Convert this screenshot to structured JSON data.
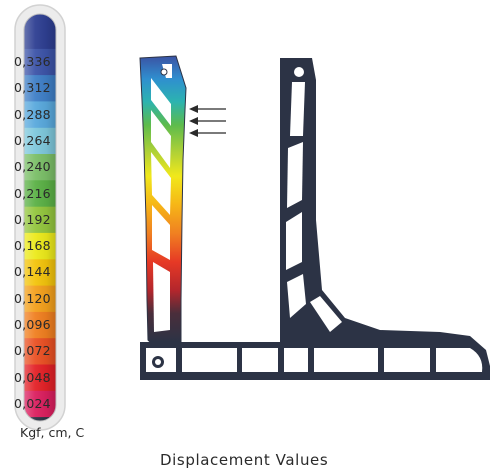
{
  "legend": {
    "values": [
      "0,336",
      "0,312",
      "0,288",
      "0,264",
      "0,240",
      "0,216",
      "0,192",
      "0,168",
      "0,144",
      "0,120",
      "0,096",
      "0,072",
      "0,048",
      "0,024"
    ],
    "colors": [
      "#3d54a8",
      "#3f7fc7",
      "#59a9dd",
      "#7ec8dc",
      "#7bbf68",
      "#5bb146",
      "#93c63e",
      "#ecea1b",
      "#f3c40c",
      "#f3a01c",
      "#f07f20",
      "#ea5124",
      "#e32127",
      "#db1f5f"
    ],
    "top_cap_color": "#2e3f92",
    "bottom_cap_color": "#2c3345",
    "units": "Kgf, cm, C"
  },
  "caption": "Displacement Values",
  "profile_color": "#2c3345",
  "arrow_count": 3
}
